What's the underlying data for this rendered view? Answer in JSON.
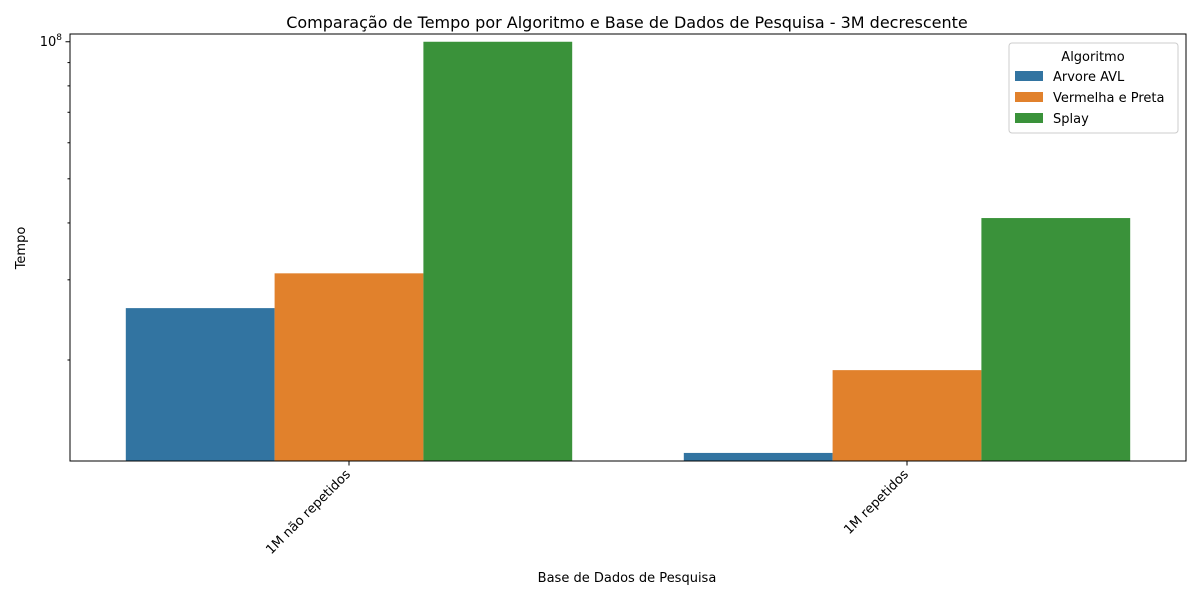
{
  "chart_data": {
    "type": "bar",
    "title": "Comparação de Tempo por Algoritmo e Base de Dados de Pesquisa - 3M decrescente",
    "xlabel": "Base de Dados de Pesquisa",
    "ylabel": "Tempo",
    "yscale": "log",
    "ylim": [
      12000000,
      104000000
    ],
    "ytick_values": [
      100000000
    ],
    "ytick_labels": [
      "10^8"
    ],
    "yminor_ticks": [
      20000000,
      30000000,
      40000000,
      50000000,
      60000000,
      70000000,
      80000000,
      90000000
    ],
    "categories": [
      "1M não repetidos",
      "1M repetidos"
    ],
    "legend": {
      "title": "Algoritmo",
      "position": "top-right"
    },
    "series": [
      {
        "name": "Arvore AVL",
        "color": "#3274a1",
        "values": [
          26000000,
          12500000
        ]
      },
      {
        "name": "Vermelha e Preta",
        "color": "#e1812c",
        "values": [
          31000000,
          19000000
        ]
      },
      {
        "name": "Splay",
        "color": "#3a923a",
        "values": [
          100000000,
          41000000
        ]
      }
    ]
  }
}
